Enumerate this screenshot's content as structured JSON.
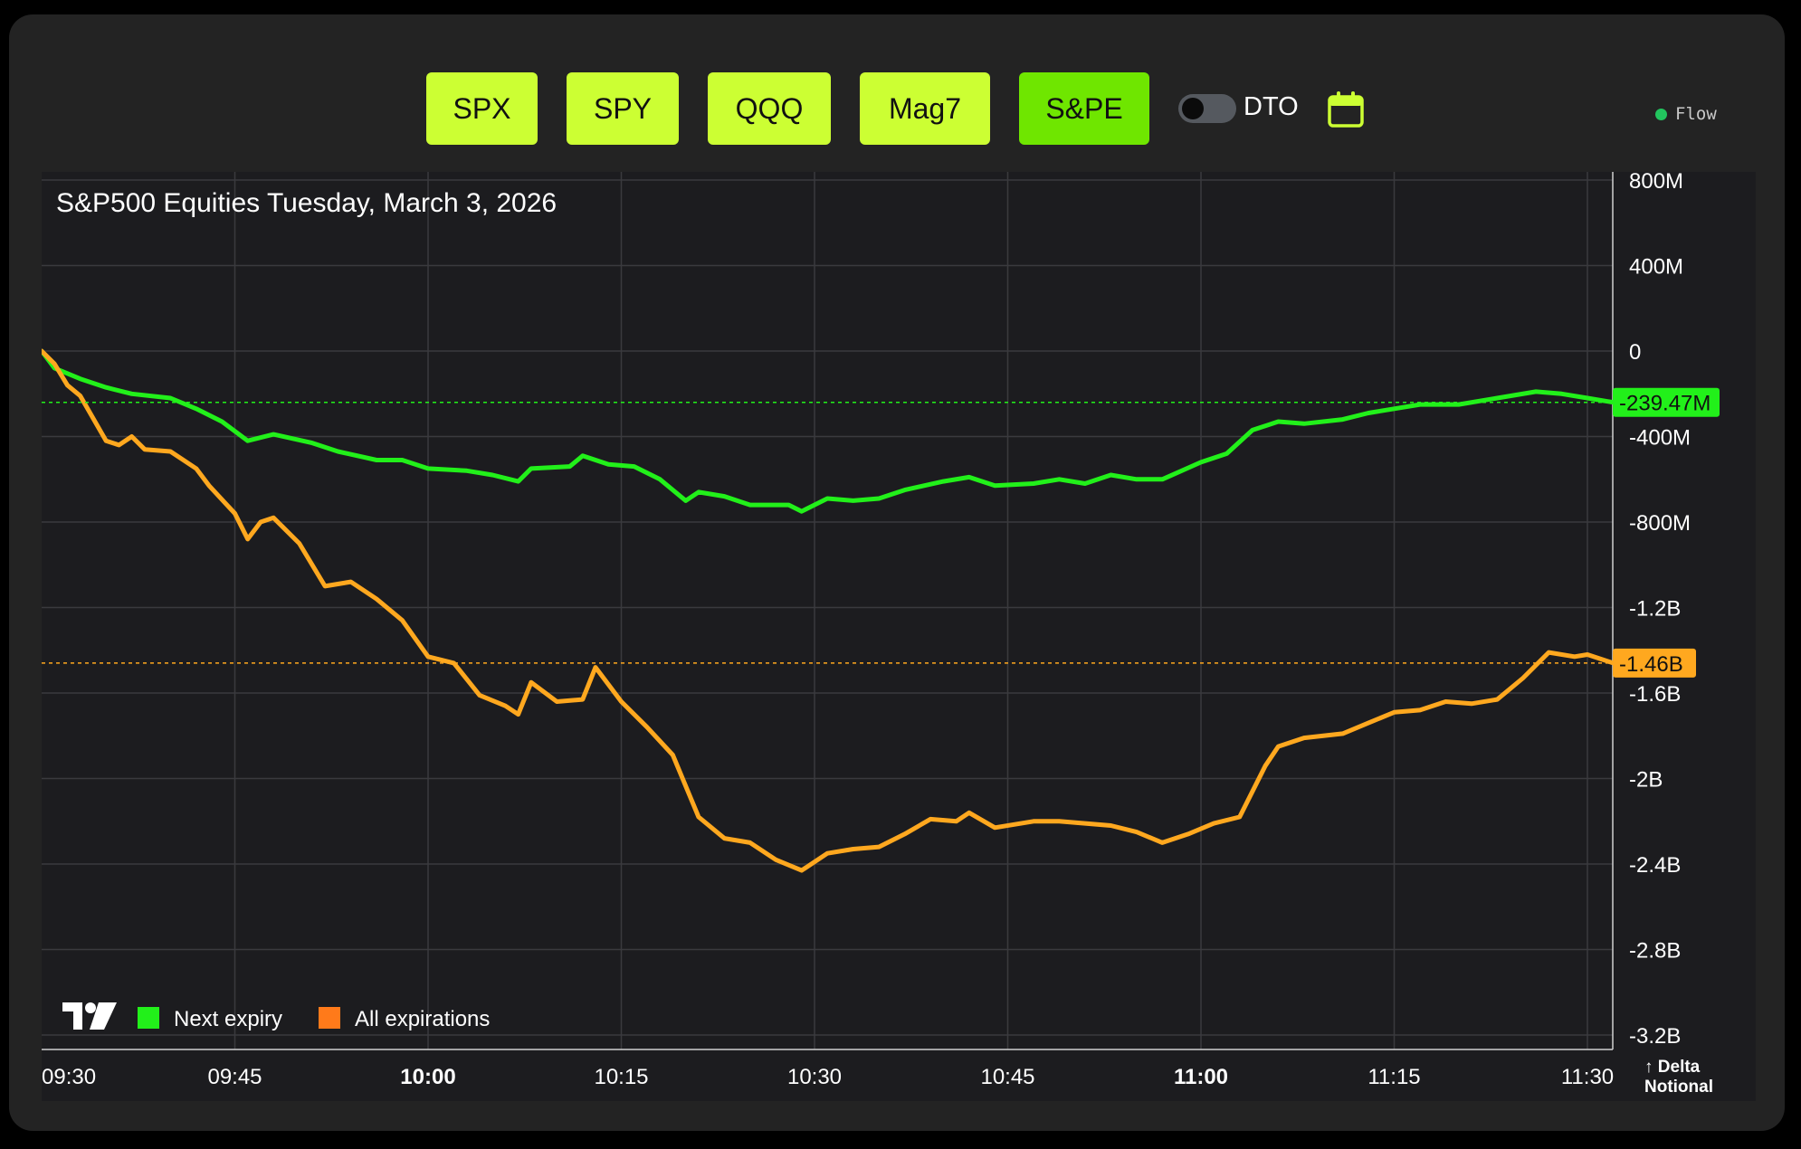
{
  "toolbar": {
    "buttons": [
      {
        "label": "SPX",
        "active": false
      },
      {
        "label": "SPY",
        "active": false
      },
      {
        "label": "QQQ",
        "active": false
      },
      {
        "label": "Mag7",
        "active": false
      },
      {
        "label": "S&PE",
        "active": true
      }
    ],
    "toggle_label": "DTO",
    "toggle_on": false,
    "calendar_icon": "calendar-icon",
    "status_label": "Flow",
    "status_color": "#22c55e"
  },
  "chart_data": {
    "type": "line",
    "title": "S&P500 Equities Tuesday, March 3, 2026",
    "xlabel": "",
    "ylabel": "↑ Delta Notional",
    "x_ticks": [
      "09:30",
      "09:45",
      "10:00",
      "10:15",
      "10:30",
      "10:45",
      "11:00",
      "11:15",
      "11:30"
    ],
    "x_ticks_bold": [
      "10:00",
      "11:00"
    ],
    "x_range": [
      "09:30",
      "11:32"
    ],
    "y_ticks": [
      "800M",
      "400M",
      "0",
      "-400M",
      "-800M",
      "-1.2B",
      "-1.6B",
      "-2B",
      "-2.4B",
      "-2.8B",
      "-3.2B"
    ],
    "y_tick_values": [
      800000000,
      400000000,
      0,
      -400000000,
      -800000000,
      -1200000000,
      -1600000000,
      -2000000000,
      -2400000000,
      -2800000000,
      -3200000000
    ],
    "ylim": [
      -3200000000,
      800000000
    ],
    "grid": true,
    "legend_position": "bottom-left",
    "series": [
      {
        "name": "Next expiry",
        "color": "#22f01a",
        "last_value_label": "-239.47M",
        "points": [
          [
            "09:30",
            0
          ],
          [
            "09:31",
            -80000000
          ],
          [
            "09:33",
            -130000000
          ],
          [
            "09:35",
            -170000000
          ],
          [
            "09:37",
            -200000000
          ],
          [
            "09:40",
            -220000000
          ],
          [
            "09:42",
            -270000000
          ],
          [
            "09:44",
            -330000000
          ],
          [
            "09:46",
            -420000000
          ],
          [
            "09:48",
            -390000000
          ],
          [
            "09:51",
            -430000000
          ],
          [
            "09:53",
            -470000000
          ],
          [
            "09:56",
            -510000000
          ],
          [
            "09:58",
            -510000000
          ],
          [
            "10:00",
            -550000000
          ],
          [
            "10:03",
            -560000000
          ],
          [
            "10:05",
            -580000000
          ],
          [
            "10:07",
            -610000000
          ],
          [
            "10:08",
            -550000000
          ],
          [
            "10:11",
            -540000000
          ],
          [
            "10:12",
            -490000000
          ],
          [
            "10:14",
            -530000000
          ],
          [
            "10:16",
            -540000000
          ],
          [
            "10:18",
            -600000000
          ],
          [
            "10:20",
            -700000000
          ],
          [
            "10:21",
            -660000000
          ],
          [
            "10:23",
            -680000000
          ],
          [
            "10:25",
            -720000000
          ],
          [
            "10:28",
            -720000000
          ],
          [
            "10:29",
            -750000000
          ],
          [
            "10:31",
            -690000000
          ],
          [
            "10:33",
            -700000000
          ],
          [
            "10:35",
            -690000000
          ],
          [
            "10:37",
            -650000000
          ],
          [
            "10:40",
            -610000000
          ],
          [
            "10:42",
            -590000000
          ],
          [
            "10:44",
            -630000000
          ],
          [
            "10:47",
            -620000000
          ],
          [
            "10:49",
            -600000000
          ],
          [
            "10:51",
            -620000000
          ],
          [
            "10:53",
            -580000000
          ],
          [
            "10:55",
            -600000000
          ],
          [
            "10:57",
            -600000000
          ],
          [
            "11:00",
            -520000000
          ],
          [
            "11:02",
            -480000000
          ],
          [
            "11:04",
            -370000000
          ],
          [
            "11:06",
            -330000000
          ],
          [
            "11:08",
            -340000000
          ],
          [
            "11:11",
            -320000000
          ],
          [
            "11:13",
            -290000000
          ],
          [
            "11:15",
            -270000000
          ],
          [
            "11:17",
            -250000000
          ],
          [
            "11:20",
            -250000000
          ],
          [
            "11:23",
            -220000000
          ],
          [
            "11:26",
            -190000000
          ],
          [
            "11:28",
            -200000000
          ],
          [
            "11:30",
            -220000000
          ],
          [
            "11:32",
            -240000000
          ]
        ]
      },
      {
        "name": "All expirations",
        "color": "#ffa81f",
        "legend_color": "#ff7a1a",
        "last_value_label": "-1.46B",
        "points": [
          [
            "09:30",
            0
          ],
          [
            "09:31",
            -60000000
          ],
          [
            "09:32",
            -160000000
          ],
          [
            "09:33",
            -210000000
          ],
          [
            "09:35",
            -420000000
          ],
          [
            "09:36",
            -440000000
          ],
          [
            "09:37",
            -400000000
          ],
          [
            "09:38",
            -460000000
          ],
          [
            "09:40",
            -470000000
          ],
          [
            "09:42",
            -550000000
          ],
          [
            "09:43",
            -630000000
          ],
          [
            "09:45",
            -760000000
          ],
          [
            "09:46",
            -880000000
          ],
          [
            "09:47",
            -800000000
          ],
          [
            "09:48",
            -780000000
          ],
          [
            "09:50",
            -900000000
          ],
          [
            "09:52",
            -1100000000
          ],
          [
            "09:54",
            -1080000000
          ],
          [
            "09:56",
            -1160000000
          ],
          [
            "09:58",
            -1260000000
          ],
          [
            "10:00",
            -1430000000
          ],
          [
            "10:02",
            -1460000000
          ],
          [
            "10:04",
            -1610000000
          ],
          [
            "10:06",
            -1660000000
          ],
          [
            "10:07",
            -1700000000
          ],
          [
            "10:08",
            -1550000000
          ],
          [
            "10:10",
            -1640000000
          ],
          [
            "10:12",
            -1630000000
          ],
          [
            "10:13",
            -1480000000
          ],
          [
            "10:15",
            -1640000000
          ],
          [
            "10:17",
            -1760000000
          ],
          [
            "10:19",
            -1890000000
          ],
          [
            "10:21",
            -2180000000
          ],
          [
            "10:23",
            -2280000000
          ],
          [
            "10:25",
            -2300000000
          ],
          [
            "10:27",
            -2380000000
          ],
          [
            "10:29",
            -2430000000
          ],
          [
            "10:31",
            -2350000000
          ],
          [
            "10:33",
            -2330000000
          ],
          [
            "10:35",
            -2320000000
          ],
          [
            "10:37",
            -2260000000
          ],
          [
            "10:39",
            -2190000000
          ],
          [
            "10:41",
            -2200000000
          ],
          [
            "10:42",
            -2160000000
          ],
          [
            "10:44",
            -2230000000
          ],
          [
            "10:47",
            -2200000000
          ],
          [
            "10:49",
            -2200000000
          ],
          [
            "10:51",
            -2210000000
          ],
          [
            "10:53",
            -2220000000
          ],
          [
            "10:55",
            -2250000000
          ],
          [
            "10:57",
            -2300000000
          ],
          [
            "10:59",
            -2260000000
          ],
          [
            "11:01",
            -2210000000
          ],
          [
            "11:03",
            -2180000000
          ],
          [
            "11:05",
            -1940000000
          ],
          [
            "11:06",
            -1850000000
          ],
          [
            "11:08",
            -1810000000
          ],
          [
            "11:11",
            -1790000000
          ],
          [
            "11:13",
            -1740000000
          ],
          [
            "11:15",
            -1690000000
          ],
          [
            "11:17",
            -1680000000
          ],
          [
            "11:19",
            -1640000000
          ],
          [
            "11:21",
            -1650000000
          ],
          [
            "11:23",
            -1630000000
          ],
          [
            "11:25",
            -1530000000
          ],
          [
            "11:27",
            -1410000000
          ],
          [
            "11:29",
            -1430000000
          ],
          [
            "11:30",
            -1420000000
          ],
          [
            "11:32",
            -1460000000
          ]
        ]
      }
    ]
  },
  "colors": {
    "panel_bg": "#232323",
    "chart_bg": "#1c1c1f",
    "button_bg": "#ccff33",
    "button_active_bg": "#6fe600"
  }
}
